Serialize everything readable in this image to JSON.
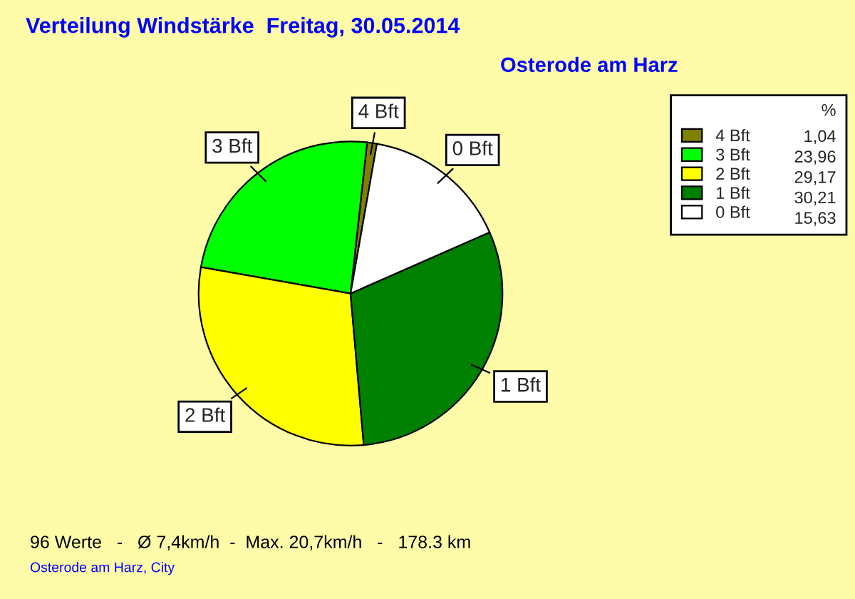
{
  "chart_data": {
    "type": "pie",
    "title": "Verteilung Windstärke  Freitag, 30.05.2014",
    "subtitle": "Osterode am Harz",
    "categories": [
      "4 Bft",
      "3 Bft",
      "2 Bft",
      "1 Bft",
      "0 Bft"
    ],
    "values": [
      1.04,
      23.96,
      29.17,
      30.21,
      15.63
    ],
    "value_labels": [
      "1,04",
      "23,96",
      "29,17",
      "30,21",
      "15,63"
    ],
    "colors": [
      "#808000",
      "#00ff00",
      "#ffff00",
      "#008000",
      "#ffffff"
    ],
    "legend_title": "%",
    "legend": "top right",
    "annotations": [
      "96 Werte   -   Ø 7,4km/h  -  Max. 20,7km/h   -   178.3 km",
      "Osterode am Harz, City"
    ]
  }
}
